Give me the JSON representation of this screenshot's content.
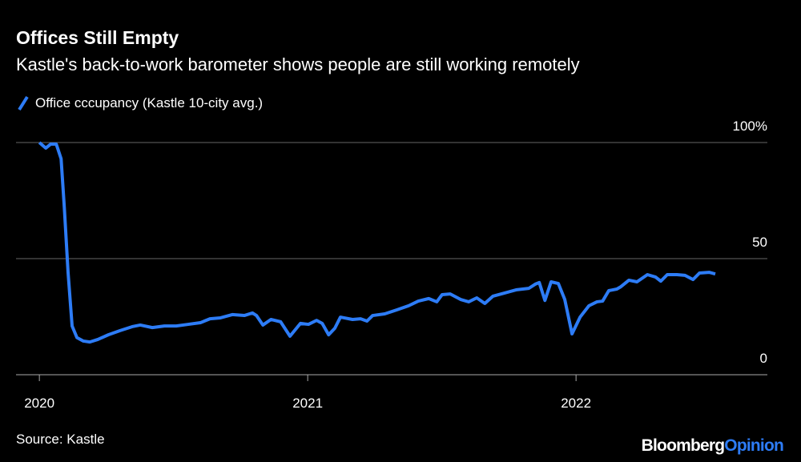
{
  "chart_data": {
    "type": "line",
    "title": "Offices Still Empty",
    "subtitle": "Kastle's back-to-work barometer shows people are still working remotely",
    "x": [
      2020.0,
      2020.024,
      2020.042,
      2020.063,
      2020.081,
      2020.093,
      2020.107,
      2020.122,
      2020.14,
      2020.164,
      2020.188,
      2020.218,
      2020.257,
      2020.301,
      2020.346,
      2020.376,
      2020.421,
      2020.466,
      2020.51,
      2020.555,
      2020.6,
      2020.636,
      2020.675,
      2020.719,
      2020.764,
      2020.794,
      2020.809,
      2020.833,
      2020.863,
      2020.899,
      2020.934,
      2020.973,
      2021.003,
      2021.033,
      2021.054,
      2021.078,
      2021.101,
      2021.122,
      2021.167,
      2021.197,
      2021.221,
      2021.242,
      2021.287,
      2021.331,
      2021.376,
      2021.412,
      2021.451,
      2021.481,
      2021.501,
      2021.531,
      2021.57,
      2021.6,
      2021.63,
      2021.66,
      2021.69,
      2021.734,
      2021.779,
      2021.824,
      2021.848,
      2021.863,
      2021.884,
      2021.907,
      2021.934,
      2021.958,
      2021.985,
      2022.015,
      2022.048,
      2022.078,
      2022.099,
      2022.122,
      2022.152,
      2022.167,
      2022.197,
      2022.227,
      2022.266,
      2022.296,
      2022.316,
      2022.34,
      2022.376,
      2022.406,
      2022.436,
      2022.46,
      2022.496,
      2022.519
    ],
    "series": [
      {
        "name": "Office cccupancy (Kastle 10-city avg.)",
        "color": "#2d7cf6",
        "values": [
          100,
          97.6,
          99.3,
          99.3,
          93,
          72,
          44,
          21,
          16,
          14.5,
          14.1,
          15.2,
          17.2,
          19,
          20.7,
          21.4,
          20.3,
          21,
          21,
          21.7,
          22.4,
          24.1,
          24.5,
          25.9,
          25.5,
          26.6,
          25.5,
          21.4,
          23.8,
          22.8,
          16.6,
          22.1,
          21.7,
          23.4,
          22.1,
          17.2,
          20,
          24.8,
          23.8,
          24.1,
          23.1,
          25.5,
          26.2,
          27.9,
          29.7,
          31.7,
          32.8,
          31.4,
          34.5,
          34.8,
          32.4,
          31.4,
          33.1,
          30.7,
          33.8,
          35.2,
          36.6,
          37.2,
          39,
          39.7,
          32,
          40,
          39.3,
          32.4,
          17.6,
          24.8,
          29.7,
          31.4,
          31.7,
          36.2,
          36.9,
          37.9,
          40.7,
          40,
          43.1,
          42.1,
          40.3,
          43.1,
          43.1,
          42.8,
          41,
          43.8,
          44.1,
          43.4
        ]
      }
    ],
    "xlim": [
      2019.913,
      2022.713
    ],
    "xticks": [
      2020,
      2021,
      2022
    ],
    "ylim": [
      0,
      100
    ],
    "yticks": [
      0,
      50,
      {
        "value": 100,
        "label": "100%"
      }
    ],
    "grid": true,
    "source": "Source: Kastle"
  },
  "brand": {
    "name": "Bloomberg",
    "accent": "Opinion"
  }
}
